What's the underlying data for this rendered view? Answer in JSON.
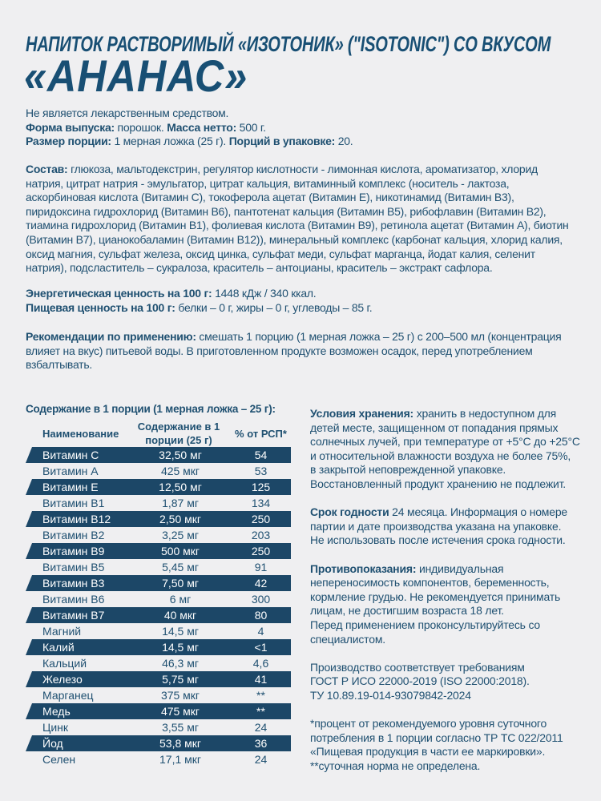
{
  "title": {
    "line1": "НАПИТОК РАСТВОРИМЫЙ «ИЗОТОНИК» (\"ISOTONIC\") СО ВКУСОМ",
    "line2": "«АНАНАС»"
  },
  "colors": {
    "text": "#1f5071",
    "title": "#184f74",
    "band": "#1c4767",
    "background": "#efeff1"
  },
  "intro": [
    [
      {
        "t": "Не является лекарственным средством."
      }
    ],
    [
      {
        "b": true,
        "t": "Форма выпуска:"
      },
      {
        "t": " порошок. "
      },
      {
        "b": true,
        "t": "Масса нетто:"
      },
      {
        "t": " 500 г."
      }
    ],
    [
      {
        "b": true,
        "t": "Размер порции:"
      },
      {
        "t": " 1 мерная ложка (25 г). "
      },
      {
        "b": true,
        "t": "Порций в упаковке:"
      },
      {
        "t": " 20."
      }
    ]
  ],
  "composition": [
    [
      {
        "b": true,
        "t": "Состав:"
      },
      {
        "t": " глюкоза, мальтодекстрин, регулятор кислотности - лимонная кислота, ароматизатор,  хлорид"
      }
    ],
    [
      {
        "t": "натрия, цитрат натрия - эмульгатор, цитрат кальция, витаминный комплекс (носитель -  лактоза,"
      }
    ],
    [
      {
        "t": "аскорбиновая кислота (Витамин С), токоферола ацетат (Витамин Е), никотинамид (Витамин В3),"
      }
    ],
    [
      {
        "t": "пиридоксина гидрохлорид (Витамин В6), пантотенат кальция (Витамин В5), рибофлавин (Витамин В2),"
      }
    ],
    [
      {
        "t": "тиамина гидрохлорид (Витамин В1),  фолиевая кислота (Витамин В9), ретинола ацетат (Витамин А), биотин"
      }
    ],
    [
      {
        "t": "(Витамин В7),  цианокобаламин (Витамин В12)), минеральный комплекс (карбонат кальция, хлорид калия,"
      }
    ],
    [
      {
        "t": "оксид магния, сульфат железа, оксид цинка, сульфат меди, сульфат марганца, йодат калия, селенит"
      }
    ],
    [
      {
        "t": "натрия), подсластитель – сукралоза, краситель – антоцианы, краситель –  экстракт сафлора."
      }
    ]
  ],
  "nutrition": [
    [
      {
        "b": true,
        "t": "Энергетическая ценность на 100 г:"
      },
      {
        "t": " 1448 кДж / 340 ккал."
      }
    ],
    [
      {
        "b": true,
        "t": "Пищевая ценность на 100 г:"
      },
      {
        "t": " белки – 0 г, жиры – 0 г, углеводы – 85 г."
      }
    ]
  ],
  "usage": [
    [
      {
        "b": true,
        "t": "Рекомендации по применению:"
      },
      {
        "t": " смешать 1 порцию (1 мерная ложка – 25 г) с 200–500 мл (концентрация"
      }
    ],
    [
      {
        "t": "влияет на вкус) питьевой воды. В приготовленном продукте возможен осадок, перед употреблением"
      }
    ],
    [
      {
        "t": "взбалтывать."
      }
    ]
  ],
  "table": {
    "title": "Содержание в 1 порции (1 мерная ложка – 25 г):",
    "headers": [
      "Наименование",
      "Содержание в 1",
      "порции (25 г)",
      "% от РСП*"
    ],
    "rows": [
      [
        "Витамин С",
        "32,50 мг",
        "54"
      ],
      [
        "Витамин А",
        "425 мкг",
        "53"
      ],
      [
        "Витамин Е",
        "12,50 мг",
        "125"
      ],
      [
        "Витамин В1",
        "1,87 мг",
        "134"
      ],
      [
        "Витамин В12",
        "2,50 мкг",
        "250"
      ],
      [
        "Витамин В2",
        "3,25 мг",
        "203"
      ],
      [
        "Витамин В9",
        "500 мкг",
        "250"
      ],
      [
        "Витамин В5",
        "5,45 мг",
        "91"
      ],
      [
        "Витамин В3",
        "7,50 мг",
        "42"
      ],
      [
        "Витамин В6",
        "6 мг",
        "300"
      ],
      [
        "Витамин В7",
        "40 мкг",
        "80"
      ],
      [
        "Магний",
        "14,5 мг",
        "4"
      ],
      [
        "Калий",
        "14,5 мг",
        "<1"
      ],
      [
        "Кальций",
        "46,3 мг",
        "4,6"
      ],
      [
        "Железо",
        "5,75 мг",
        "41"
      ],
      [
        "Марганец",
        "375 мкг",
        "**"
      ],
      [
        "Медь",
        "475 мкг",
        "**"
      ],
      [
        "Цинк",
        "3,55 мг",
        "24"
      ],
      [
        "Йод",
        "53,8 мкг",
        "36"
      ],
      [
        "Селен",
        "17,1 мкг",
        "24"
      ]
    ]
  },
  "right": [
    [
      {
        "b": true,
        "t": "Условия хранения:"
      },
      {
        "t": " хранить в недоступном для"
      }
    ],
    [
      {
        "t": "детей месте, защищенном от попадания прямых"
      }
    ],
    [
      {
        "t": "солнечных лучей, при температуре от +5°С до +25°С"
      }
    ],
    [
      {
        "t": "и относительной влажности воздуха не более 75%,"
      }
    ],
    [
      {
        "t": "в закрытой неповрежденной упаковке."
      }
    ],
    [
      {
        "t": "Восстановленный продукт хранению не подлежит."
      }
    ],
    [],
    [
      {
        "b": true,
        "t": "Срок годности"
      },
      {
        "t": " 24 месяца. Информация о номере"
      }
    ],
    [
      {
        "t": "партии и дате производства указана на упаковке."
      }
    ],
    [
      {
        "t": "Не использовать после истечения срока годности."
      }
    ],
    [],
    [
      {
        "b": true,
        "t": "Противопоказания:"
      },
      {
        "t": " индивидуальная"
      }
    ],
    [
      {
        "t": "непереносимость компонентов, беременность,"
      }
    ],
    [
      {
        "t": "кормление грудью. Не рекомендуется принимать"
      }
    ],
    [
      {
        "t": "лицам, не достигшим возраста 18 лет."
      }
    ],
    [
      {
        "t": "Перед применением проконсультируйтесь со"
      }
    ],
    [
      {
        "t": "специалистом."
      }
    ],
    [],
    [
      {
        "t": "Производство соответствует требованиям"
      }
    ],
    [
      {
        "t": "ГОСТ Р ИСО 22000-2019 (ISO 22000:2018)."
      }
    ],
    [
      {
        "t": "ТУ 10.89.19-014-93079842-2024"
      }
    ],
    [],
    [
      {
        "t": "*процент от рекомендуемого уровня суточного"
      }
    ],
    [
      {
        "t": "потребления в 1 порции согласно ТР ТС 022/2011"
      }
    ],
    [
      {
        "t": "«Пищевая продукция в части ее маркировки»."
      }
    ],
    [
      {
        "t": "**суточная норма не определена."
      }
    ]
  ]
}
